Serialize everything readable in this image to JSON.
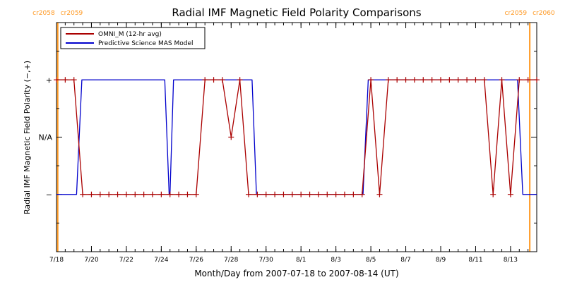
{
  "chart_data": {
    "type": "line",
    "title": "Radial IMF Magnetic Field Polarity Comparisons",
    "xlabel": "Month/Day from 2007-07-18 to 2007-08-14 (UT)",
    "ylabel": "Radial IMF Magnetic Field Polarity (−,+)",
    "x_unit": "days since 2007-07-18 00:00 UT",
    "xlim": [
      0,
      27.5
    ],
    "ylim": [
      -2,
      2
    ],
    "x_ticks": [
      {
        "x": 0,
        "label": "7/18"
      },
      {
        "x": 2,
        "label": "7/20"
      },
      {
        "x": 4,
        "label": "7/22"
      },
      {
        "x": 6,
        "label": "7/24"
      },
      {
        "x": 8,
        "label": "7/26"
      },
      {
        "x": 10,
        "label": "7/28"
      },
      {
        "x": 12,
        "label": "7/30"
      },
      {
        "x": 14,
        "label": "8/1"
      },
      {
        "x": 16,
        "label": "8/3"
      },
      {
        "x": 18,
        "label": "8/5"
      },
      {
        "x": 20,
        "label": "8/7"
      },
      {
        "x": 22,
        "label": "8/9"
      },
      {
        "x": 24,
        "label": "8/11"
      },
      {
        "x": 26,
        "label": "8/13"
      }
    ],
    "y_ticks": [
      {
        "y": 1,
        "label": "+"
      },
      {
        "y": 0,
        "label": "N/A"
      },
      {
        "y": -1,
        "label": "−"
      }
    ],
    "carrington_markers": [
      {
        "x": 0.07,
        "left_label": "cr2058",
        "right_label": "cr2059",
        "color": "#ff9922"
      },
      {
        "x": 27.1,
        "left_label": "cr2059",
        "right_label": "cr2060",
        "color": "#ff9922"
      }
    ],
    "legend": {
      "placement": "top-left"
    },
    "series": [
      {
        "name": "OMNI_M (12-hr avg)",
        "color": "#aa0000",
        "markers": true,
        "points": [
          [
            0.0,
            1
          ],
          [
            0.5,
            1
          ],
          [
            1.0,
            1
          ],
          [
            1.5,
            -1
          ],
          [
            2.0,
            -1
          ],
          [
            2.5,
            -1
          ],
          [
            3.0,
            -1
          ],
          [
            3.5,
            -1
          ],
          [
            4.0,
            -1
          ],
          [
            4.5,
            -1
          ],
          [
            5.0,
            -1
          ],
          [
            5.5,
            -1
          ],
          [
            6.0,
            -1
          ],
          [
            6.5,
            -1
          ],
          [
            7.0,
            -1
          ],
          [
            7.5,
            -1
          ],
          [
            8.0,
            -1
          ],
          [
            8.5,
            1
          ],
          [
            9.0,
            1
          ],
          [
            9.5,
            1
          ],
          [
            10.0,
            0
          ],
          [
            10.5,
            1
          ],
          [
            11.0,
            -1
          ],
          [
            11.5,
            -1
          ],
          [
            12.0,
            -1
          ],
          [
            12.5,
            -1
          ],
          [
            13.0,
            -1
          ],
          [
            13.5,
            -1
          ],
          [
            14.0,
            -1
          ],
          [
            14.5,
            -1
          ],
          [
            15.0,
            -1
          ],
          [
            15.5,
            -1
          ],
          [
            16.0,
            -1
          ],
          [
            16.5,
            -1
          ],
          [
            17.0,
            -1
          ],
          [
            17.5,
            -1
          ],
          [
            18.0,
            1
          ],
          [
            18.5,
            -1
          ],
          [
            19.0,
            1
          ],
          [
            19.5,
            1
          ],
          [
            20.0,
            1
          ],
          [
            20.5,
            1
          ],
          [
            21.0,
            1
          ],
          [
            21.5,
            1
          ],
          [
            22.0,
            1
          ],
          [
            22.5,
            1
          ],
          [
            23.0,
            1
          ],
          [
            23.5,
            1
          ],
          [
            24.0,
            1
          ],
          [
            24.5,
            1
          ],
          [
            25.0,
            -1
          ],
          [
            25.5,
            1
          ],
          [
            26.0,
            -1
          ],
          [
            26.5,
            1
          ],
          [
            27.0,
            1
          ],
          [
            27.5,
            1
          ]
        ]
      },
      {
        "name": "Predictive Science MAS Model",
        "color": "#0000cc",
        "markers": false,
        "points": [
          [
            0.0,
            -1
          ],
          [
            1.15,
            -1
          ],
          [
            1.45,
            1
          ],
          [
            6.2,
            1
          ],
          [
            6.45,
            -1
          ],
          [
            6.5,
            -1
          ],
          [
            6.7,
            1
          ],
          [
            11.2,
            1
          ],
          [
            11.45,
            -1
          ],
          [
            17.55,
            -1
          ],
          [
            17.85,
            1
          ],
          [
            26.4,
            1
          ],
          [
            26.7,
            -1
          ],
          [
            27.5,
            -1
          ]
        ]
      }
    ]
  }
}
